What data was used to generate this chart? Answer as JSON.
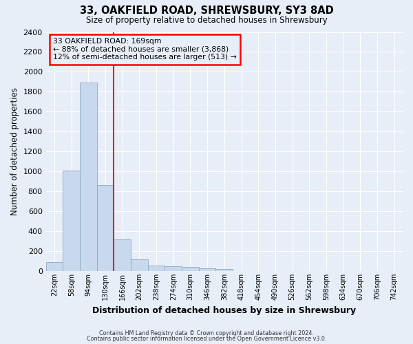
{
  "title": "33, OAKFIELD ROAD, SHREWSBURY, SY3 8AD",
  "subtitle": "Size of property relative to detached houses in Shrewsbury",
  "xlabel": "Distribution of detached houses by size in Shrewsbury",
  "ylabel": "Number of detached properties",
  "bin_labels": [
    "22sqm",
    "58sqm",
    "94sqm",
    "130sqm",
    "166sqm",
    "202sqm",
    "238sqm",
    "274sqm",
    "310sqm",
    "346sqm",
    "382sqm",
    "418sqm",
    "454sqm",
    "490sqm",
    "526sqm",
    "562sqm",
    "598sqm",
    "634sqm",
    "670sqm",
    "706sqm",
    "742sqm"
  ],
  "bar_heights": [
    90,
    1010,
    1890,
    860,
    320,
    120,
    55,
    50,
    40,
    25,
    20,
    0,
    0,
    0,
    0,
    0,
    0,
    0,
    0,
    0,
    0
  ],
  "bar_color": "#c8d8ee",
  "bar_edge_color": "#8aaabb",
  "red_line_bin": 4,
  "annotation_line1": "33 OAKFIELD ROAD: 169sqm",
  "annotation_line2": "← 88% of detached houses are smaller (3,868)",
  "annotation_line3": "12% of semi-detached houses are larger (513) →",
  "ylim": [
    0,
    2400
  ],
  "yticks": [
    0,
    200,
    400,
    600,
    800,
    1000,
    1200,
    1400,
    1600,
    1800,
    2000,
    2200,
    2400
  ],
  "footnote1": "Contains HM Land Registry data © Crown copyright and database right 2024.",
  "footnote2": "Contains public sector information licensed under the Open Government Licence v3.0.",
  "background_color": "#e8eef8",
  "grid_color": "#ffffff"
}
